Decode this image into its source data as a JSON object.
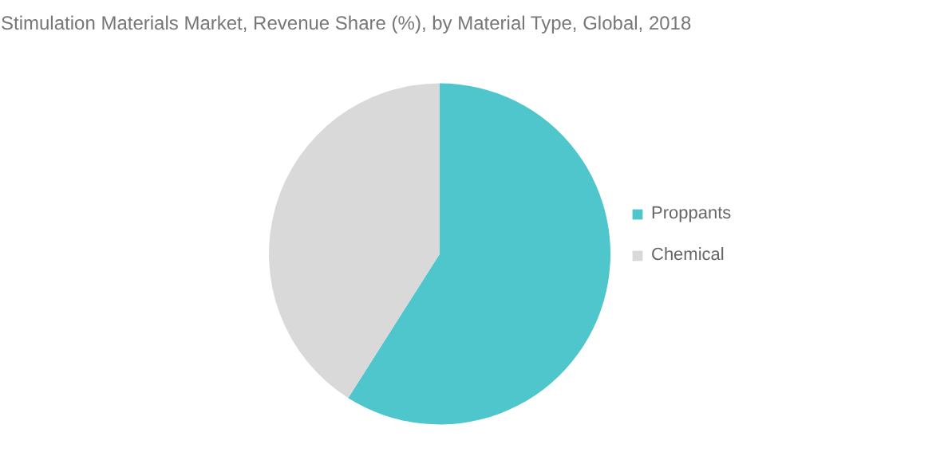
{
  "chart_data": {
    "type": "pie",
    "title": "Stimulation Materials Market, Revenue Share (%), by Material Type, Global, 2018",
    "categories": [
      "Proppants",
      "Chemical"
    ],
    "values": [
      59,
      41
    ],
    "colors": [
      "#4fc6cb",
      "#d9d9d9"
    ],
    "legend": "right"
  }
}
